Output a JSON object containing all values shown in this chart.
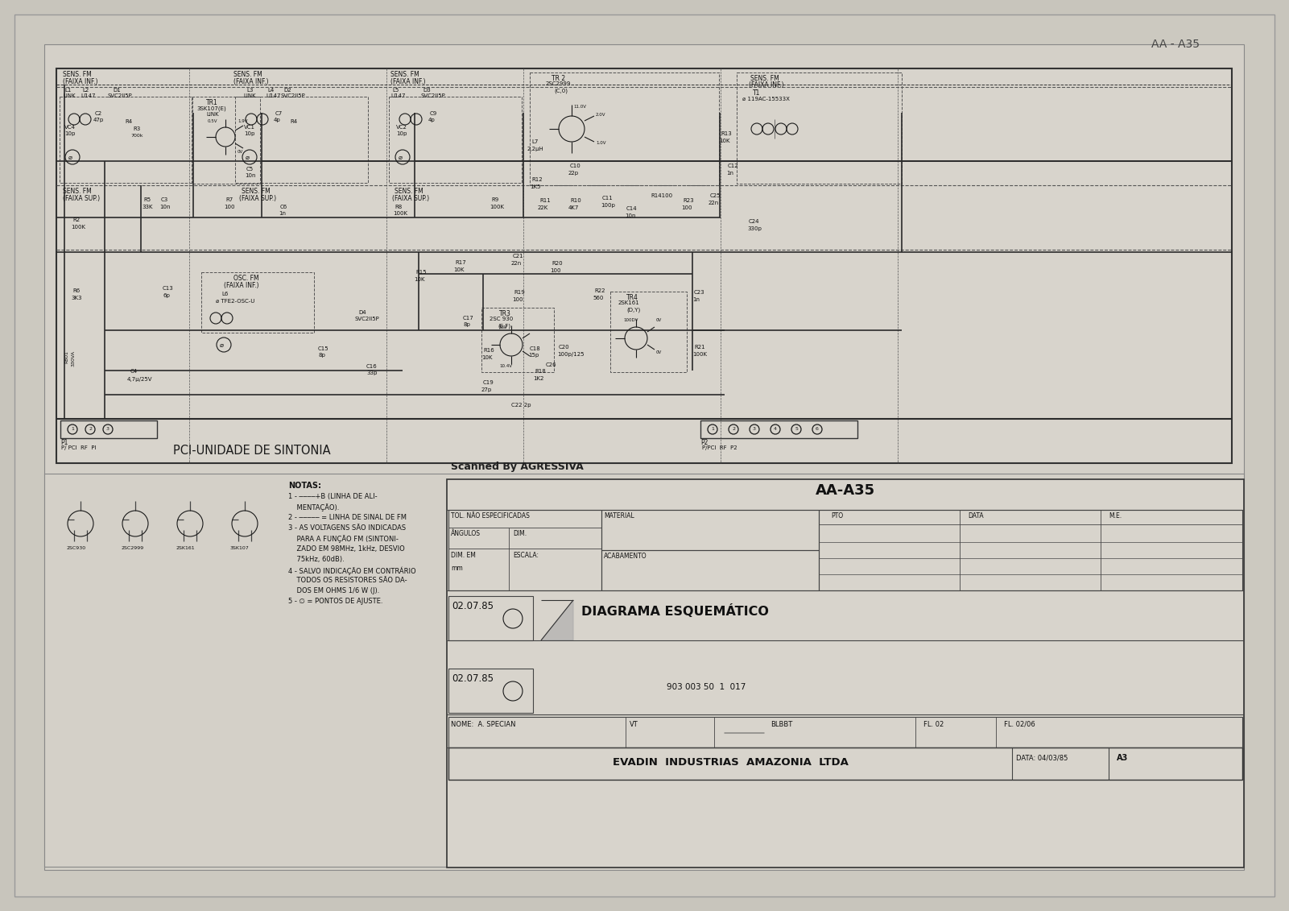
{
  "title": "AA - A35",
  "bg_color": "#c8c5bc",
  "outer_fill": "#ccc9c0",
  "inner_fill": "#d4d0c8",
  "schematic_fill": "#d8d4cc",
  "line_color": "#1a1a1a",
  "mid_line_color": "#444444",
  "light_line_color": "#666666",
  "text_color": "#111111",
  "watermark": "Scanned By AGRESSIVA",
  "bottom_title": "AA-A35",
  "diagram_label": "DIAGRAMA ESQUEMÁTICO",
  "company": "EVADIN  INDUSTRIAS  AMAZONIA  LTDA",
  "pci_label": "PCI-UNIDADE DE SINTONIA",
  "notas_title": "NOTAS:",
  "date1": "02.07.85",
  "date2": "02.07.85",
  "nome_label": "NOME:  A. SPECIAN",
  "vt_label": "VT",
  "blbbt_label": "BLBBT",
  "doc_num": "903 003 50  1  017",
  "fl_label": "FL. 02",
  "fl2_label": "FL. 02/06",
  "data_label": "DATA: 04/03/85",
  "a3_label": "A3",
  "tol_label": "TOL. NÃO ESPECIFICADAS",
  "angulos_label": "ÂNGULOS",
  "dim_label": "DIM.",
  "acabamento_label": "ACABAMENTO",
  "dim_em_label": "DIM. EM",
  "escala_label": "ESCALA:",
  "mm_label": "mm",
  "material_label": "MATERIAL",
  "pto_label": "PTO",
  "data_col_label": "DATA",
  "me_label": "M.E."
}
